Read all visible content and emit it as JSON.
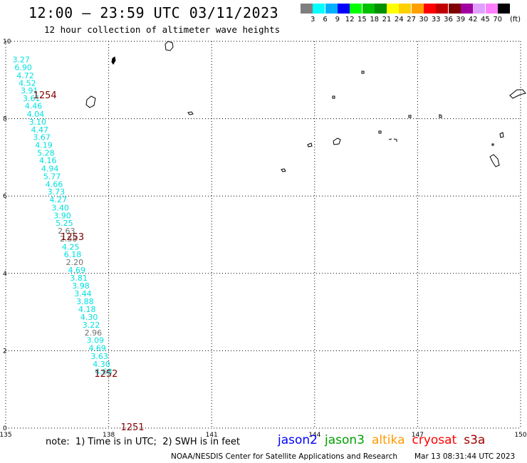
{
  "header": {
    "title": "12:00 – 23:59 UTC 03/11/2023",
    "subtitle": "12 hour collection of altimeter wave heights"
  },
  "color_scale": {
    "unit": "(ft)",
    "colors": [
      "#7f7f7f",
      "#00ffff",
      "#00b0ff",
      "#0000ff",
      "#00ff00",
      "#00c000",
      "#009000",
      "#ffff00",
      "#ffd000",
      "#ffa000",
      "#ff0000",
      "#c00000",
      "#800000",
      "#a000a0",
      "#e0a0ff",
      "#ff80ff",
      "#000000"
    ],
    "labels": [
      "",
      "3",
      "6",
      "9",
      "12",
      "15",
      "18",
      "21",
      "24",
      "27",
      "30",
      "33",
      "36",
      "39",
      "42",
      "45",
      "70"
    ]
  },
  "axes": {
    "x_ticks": [
      "135",
      "138",
      "141",
      "144",
      "147",
      "150"
    ],
    "y_ticks": [
      "0",
      "2",
      "4",
      "6",
      "8",
      "10"
    ]
  },
  "chart_data": {
    "type": "scatter",
    "xlim": [
      135,
      150
    ],
    "ylim": [
      0,
      10
    ],
    "x_ticks": [
      135,
      138,
      141,
      144,
      147,
      150
    ],
    "y_ticks": [
      0,
      2,
      4,
      6,
      8,
      10
    ],
    "grid": true,
    "series": [
      {
        "name": "cryosat",
        "values": [
          {
            "x": 135.45,
            "y": 9.53,
            "label": "3.27",
            "color": "#00e0e0"
          },
          {
            "x": 135.51,
            "y": 9.33,
            "label": "6.90",
            "color": "#00e0e0"
          },
          {
            "x": 135.57,
            "y": 9.12,
            "label": "4.72",
            "color": "#00e0e0"
          },
          {
            "x": 135.63,
            "y": 8.92,
            "label": "4.52",
            "color": "#00e0e0"
          },
          {
            "x": 135.69,
            "y": 8.73,
            "label": "3.91",
            "color": "#00e0e0"
          },
          {
            "x": 135.75,
            "y": 8.53,
            "label": "3.61",
            "color": "#00e0e0"
          },
          {
            "x": 135.81,
            "y": 8.33,
            "label": "4.46",
            "color": "#00e0e0"
          },
          {
            "x": 135.87,
            "y": 8.12,
            "label": "4.04",
            "color": "#00e0e0"
          },
          {
            "x": 135.93,
            "y": 7.92,
            "label": "3.10",
            "color": "#00e0e0"
          },
          {
            "x": 135.99,
            "y": 7.72,
            "label": "4.47",
            "color": "#00e0e0"
          },
          {
            "x": 136.05,
            "y": 7.52,
            "label": "3.67",
            "color": "#00e0e0"
          },
          {
            "x": 136.11,
            "y": 7.32,
            "label": "4.19",
            "color": "#00e0e0"
          },
          {
            "x": 136.17,
            "y": 7.12,
            "label": "5.28",
            "color": "#00e0e0"
          },
          {
            "x": 136.23,
            "y": 6.92,
            "label": "4.16",
            "color": "#00e0e0"
          },
          {
            "x": 136.29,
            "y": 6.71,
            "label": "4.94",
            "color": "#00e0e0"
          },
          {
            "x": 136.35,
            "y": 6.51,
            "label": "5.77",
            "color": "#00e0e0"
          },
          {
            "x": 136.41,
            "y": 6.31,
            "label": "4.66",
            "color": "#00e0e0"
          },
          {
            "x": 136.47,
            "y": 6.11,
            "label": "3.73",
            "color": "#00e0e0"
          },
          {
            "x": 136.53,
            "y": 5.91,
            "label": "4.27",
            "color": "#00e0e0"
          },
          {
            "x": 136.59,
            "y": 5.7,
            "label": "3.40",
            "color": "#00e0e0"
          },
          {
            "x": 136.65,
            "y": 5.5,
            "label": "3.90",
            "color": "#00e0e0"
          },
          {
            "x": 136.71,
            "y": 5.3,
            "label": "5.25",
            "color": "#00e0e0"
          },
          {
            "x": 136.77,
            "y": 5.1,
            "label": "2.63",
            "color": "#707070"
          },
          {
            "x": 136.83,
            "y": 4.9,
            "label": "2.58",
            "color": "#707070"
          },
          {
            "x": 136.89,
            "y": 4.69,
            "label": "4.25",
            "color": "#00e0e0"
          },
          {
            "x": 136.95,
            "y": 4.49,
            "label": "6.18",
            "color": "#00e0e0"
          },
          {
            "x": 137.01,
            "y": 4.29,
            "label": "2.20",
            "color": "#707070"
          },
          {
            "x": 137.07,
            "y": 4.09,
            "label": "4.69",
            "color": "#00e0e0"
          },
          {
            "x": 137.13,
            "y": 3.89,
            "label": "3.81",
            "color": "#00e0e0"
          },
          {
            "x": 137.19,
            "y": 3.68,
            "label": "3.98",
            "color": "#00e0e0"
          },
          {
            "x": 137.25,
            "y": 3.48,
            "label": "3.44",
            "color": "#00e0e0"
          },
          {
            "x": 137.31,
            "y": 3.28,
            "label": "3.88",
            "color": "#00e0e0"
          },
          {
            "x": 137.37,
            "y": 3.08,
            "label": "4.18",
            "color": "#00e0e0"
          },
          {
            "x": 137.43,
            "y": 2.87,
            "label": "4.30",
            "color": "#00e0e0"
          },
          {
            "x": 137.49,
            "y": 2.67,
            "label": "3.22",
            "color": "#00e0e0"
          },
          {
            "x": 137.55,
            "y": 2.47,
            "label": "2.96",
            "color": "#707070"
          },
          {
            "x": 137.61,
            "y": 2.27,
            "label": "3.09",
            "color": "#00e0e0"
          },
          {
            "x": 137.67,
            "y": 2.07,
            "label": "4.69",
            "color": "#00e0e0"
          },
          {
            "x": 137.73,
            "y": 1.86,
            "label": "3.63",
            "color": "#00e0e0"
          },
          {
            "x": 137.79,
            "y": 1.66,
            "label": "4.30",
            "color": "#00e0e0"
          },
          {
            "x": 137.85,
            "y": 1.46,
            "label": "4.68",
            "color": "#00e0e0"
          }
        ]
      }
    ],
    "time_labels": [
      {
        "text": "1254",
        "x": 135.8,
        "y": 8.6
      },
      {
        "text": "1253",
        "x": 136.6,
        "y": 4.94
      },
      {
        "text": "1252",
        "x": 137.58,
        "y": 1.4
      },
      {
        "text": "1251",
        "x": 138.35,
        "y": 0.02
      }
    ]
  },
  "footer": {
    "note": "note:  1) Time is in UTC;  2) SWH is in feet",
    "satellites": [
      {
        "name": "jason2",
        "color": "#0000ff"
      },
      {
        "name": "jason3",
        "color": "#00a000"
      },
      {
        "name": "altika",
        "color": "#ff9900"
      },
      {
        "name": "cryosat",
        "color": "#ff0000"
      },
      {
        "name": "s3a",
        "color": "#a00000"
      }
    ],
    "credit": "NOAA/NESDIS Center for Satellite Applications and Research",
    "timestamp": "Mar 13 08:31:44 UTC 2023"
  }
}
